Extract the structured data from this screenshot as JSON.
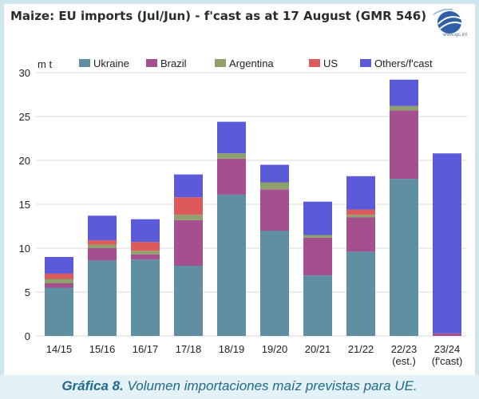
{
  "chart_data": {
    "type": "bar",
    "stacked": true,
    "title": "Maize: EU imports (Jul/Jun) - f'cast as at 17 August (GMR 546)",
    "ylabel": "m t",
    "ylim": [
      0,
      30
    ],
    "yticks": [
      0,
      5,
      10,
      15,
      20,
      25,
      30
    ],
    "grid": true,
    "legend_position": "top",
    "categories": [
      "14/15",
      "15/16",
      "16/17",
      "17/18",
      "18/19",
      "19/20",
      "20/21",
      "21/22",
      "22/23",
      "23/24"
    ],
    "category_sublabels": [
      "",
      "",
      "",
      "",
      "",
      "",
      "",
      "",
      "(est.)",
      "(f'cast)"
    ],
    "series": [
      {
        "name": "Ukraine",
        "color": "#5f8fa0",
        "values": [
          5.5,
          8.6,
          8.7,
          8.0,
          16.1,
          12.0,
          6.9,
          9.6,
          17.9,
          0.0
        ]
      },
      {
        "name": "Brazil",
        "color": "#a4508f",
        "values": [
          0.5,
          1.4,
          0.6,
          5.2,
          4.1,
          4.7,
          4.3,
          3.9,
          7.8,
          0.3
        ]
      },
      {
        "name": "Argentina",
        "color": "#8ea06c",
        "values": [
          0.5,
          0.4,
          0.4,
          0.6,
          0.6,
          0.8,
          0.3,
          0.3,
          0.5,
          0.0
        ]
      },
      {
        "name": "US",
        "color": "#dc5a5a",
        "values": [
          0.6,
          0.5,
          1.0,
          2.0,
          0.0,
          0.0,
          0.0,
          0.6,
          0.0,
          0.0
        ]
      },
      {
        "name": "Others/f'cast",
        "color": "#5b5bd9",
        "values": [
          1.9,
          2.8,
          2.6,
          2.6,
          3.6,
          2.0,
          3.8,
          3.8,
          3.0,
          20.5
        ]
      }
    ]
  },
  "logo": {
    "url": "www.igc.int"
  },
  "caption": {
    "label": "Gráfica 8.",
    "text": "Volumen importaciones maíz previstas para UE."
  }
}
